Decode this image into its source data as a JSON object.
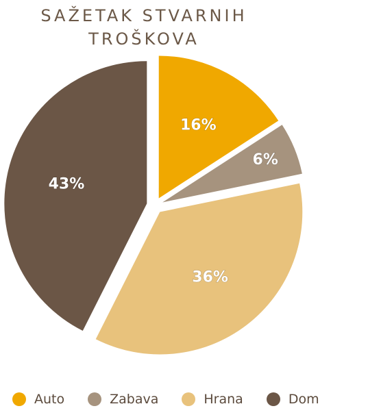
{
  "chart_data": {
    "type": "pie",
    "title": "SAŽETAK STVARNIH TROŠKOVA",
    "title_lines": [
      "SAŽETAK STVARNIH",
      "TROŠKOVA"
    ],
    "categories": [
      "Auto",
      "Zabava",
      "Hrana",
      "Dom"
    ],
    "values": [
      16,
      6,
      36,
      43
    ],
    "labels": [
      "16%",
      "6%",
      "36%",
      "43%"
    ],
    "colors": [
      "#F0A800",
      "#A6937E",
      "#E8C27C",
      "#6B5646"
    ],
    "exploded": true,
    "legend_position": "bottom"
  }
}
